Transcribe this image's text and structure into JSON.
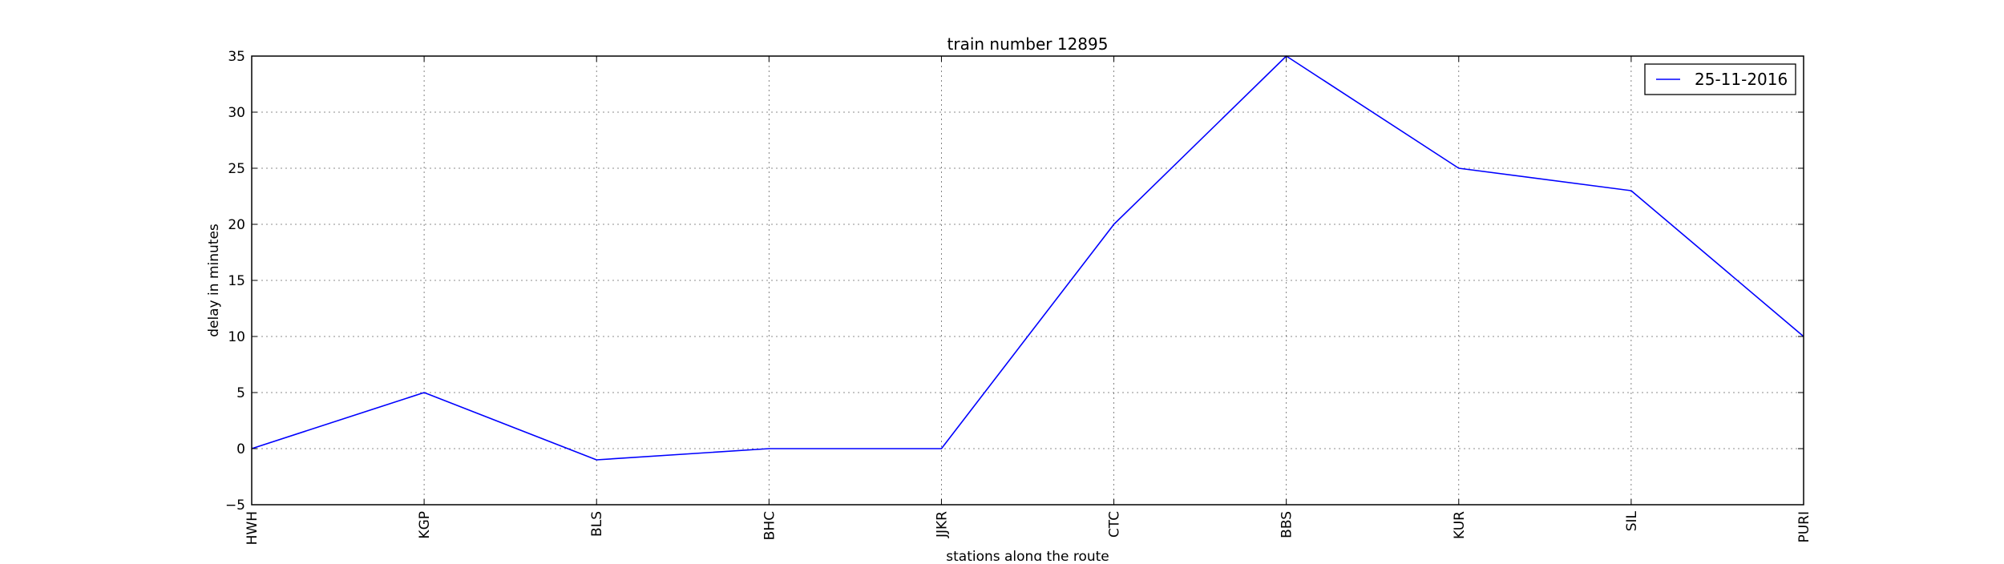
{
  "chart_data": {
    "type": "line",
    "title": "train number 12895",
    "xlabel": "stations along the route",
    "ylabel": "delay in minutes",
    "categories": [
      "HWH",
      "KGP",
      "BLS",
      "BHC",
      "JJKR",
      "CTC",
      "BBS",
      "KUR",
      "SIL",
      "PURI"
    ],
    "series": [
      {
        "name": "25-11-2016",
        "values": [
          0,
          5,
          -1,
          0,
          0,
          20,
          35,
          25,
          23,
          10
        ],
        "color": "#0000ff"
      }
    ],
    "ylim": [
      -5,
      35
    ],
    "yticks": [
      -5,
      0,
      5,
      10,
      15,
      20,
      25,
      30,
      35
    ],
    "ytick_labels": [
      "−5",
      "0",
      "5",
      "10",
      "15",
      "20",
      "25",
      "30",
      "35"
    ],
    "grid": true,
    "legend_position": "top-right"
  }
}
